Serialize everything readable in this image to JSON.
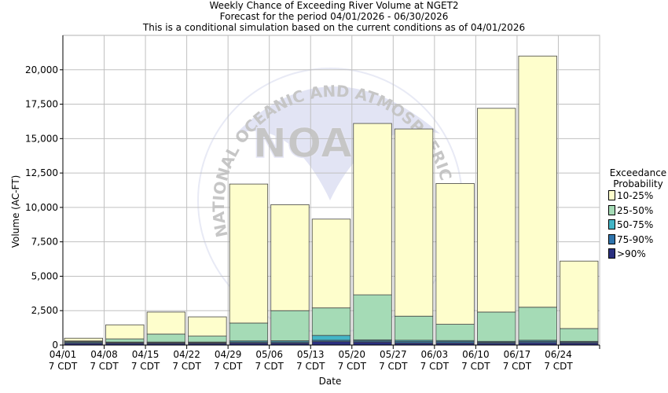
{
  "title_lines": [
    "Weekly Chance of Exceeding River Volume at NGET2",
    "Forecast for the period 04/01/2026 - 06/30/2026",
    "This is a conditional simulation based on the current conditions as of 04/01/2026"
  ],
  "watermark": {
    "logo_text": "NOAA",
    "ring_text": "NATIONAL OCEANIC AND ATMOSPHERIC ADMINISTRATION"
  },
  "chart_data": {
    "type": "bar",
    "stacked": true,
    "title": "Weekly Chance of Exceeding River Volume at NGET2",
    "xlabel": "Date",
    "ylabel": "Volume (AC-FT)",
    "ylim": [
      0,
      22500
    ],
    "yticks": [
      "0",
      "2,500",
      "5,000",
      "7,500",
      "10,000",
      "12,500",
      "15,000",
      "17,500",
      "20,000"
    ],
    "ytick_values": [
      0,
      2500,
      5000,
      7500,
      10000,
      12500,
      15000,
      17500,
      20000
    ],
    "grid": true,
    "legend_position": "right",
    "legend_title": [
      "Exceedance",
      "Probability"
    ],
    "tick_labels": [
      [
        "04/01",
        "7 CDT"
      ],
      [
        "04/08",
        "7 CDT"
      ],
      [
        "04/15",
        "7 CDT"
      ],
      [
        "04/22",
        "7 CDT"
      ],
      [
        "04/29",
        "7 CDT"
      ],
      [
        "05/06",
        "7 CDT"
      ],
      [
        "05/13",
        "7 CDT"
      ],
      [
        "05/20",
        "7 CDT"
      ],
      [
        "05/27",
        "7 CDT"
      ],
      [
        "06/03",
        "7 CDT"
      ],
      [
        "06/10",
        "7 CDT"
      ],
      [
        "06/17",
        "7 CDT"
      ],
      [
        "06/24",
        "7 CDT"
      ]
    ],
    "series": [
      {
        "name": ">90%",
        "color": "#2a2f7f",
        "values": [
          130,
          130,
          120,
          120,
          150,
          150,
          250,
          220,
          150,
          150,
          130,
          170,
          150
        ]
      },
      {
        "name": "75-90%",
        "color": "#2f74ac",
        "values": [
          60,
          40,
          50,
          50,
          70,
          80,
          100,
          80,
          100,
          100,
          80,
          100,
          70
        ]
      },
      {
        "name": "50-75%",
        "color": "#43b5c6",
        "values": [
          60,
          50,
          50,
          50,
          80,
          80,
          350,
          80,
          100,
          80,
          60,
          80,
          50
        ]
      },
      {
        "name": "25-50%",
        "color": "#a5dbb6",
        "values": [
          50,
          230,
          580,
          430,
          1300,
          2190,
          2000,
          3270,
          1750,
          1180,
          2130,
          2400,
          930
        ]
      },
      {
        "name": "10-25%",
        "color": "#fefecc",
        "values": [
          200,
          1020,
          1600,
          1400,
          10100,
          7700,
          6450,
          12450,
          13600,
          10230,
          14800,
          18250,
          4900
        ]
      }
    ]
  }
}
